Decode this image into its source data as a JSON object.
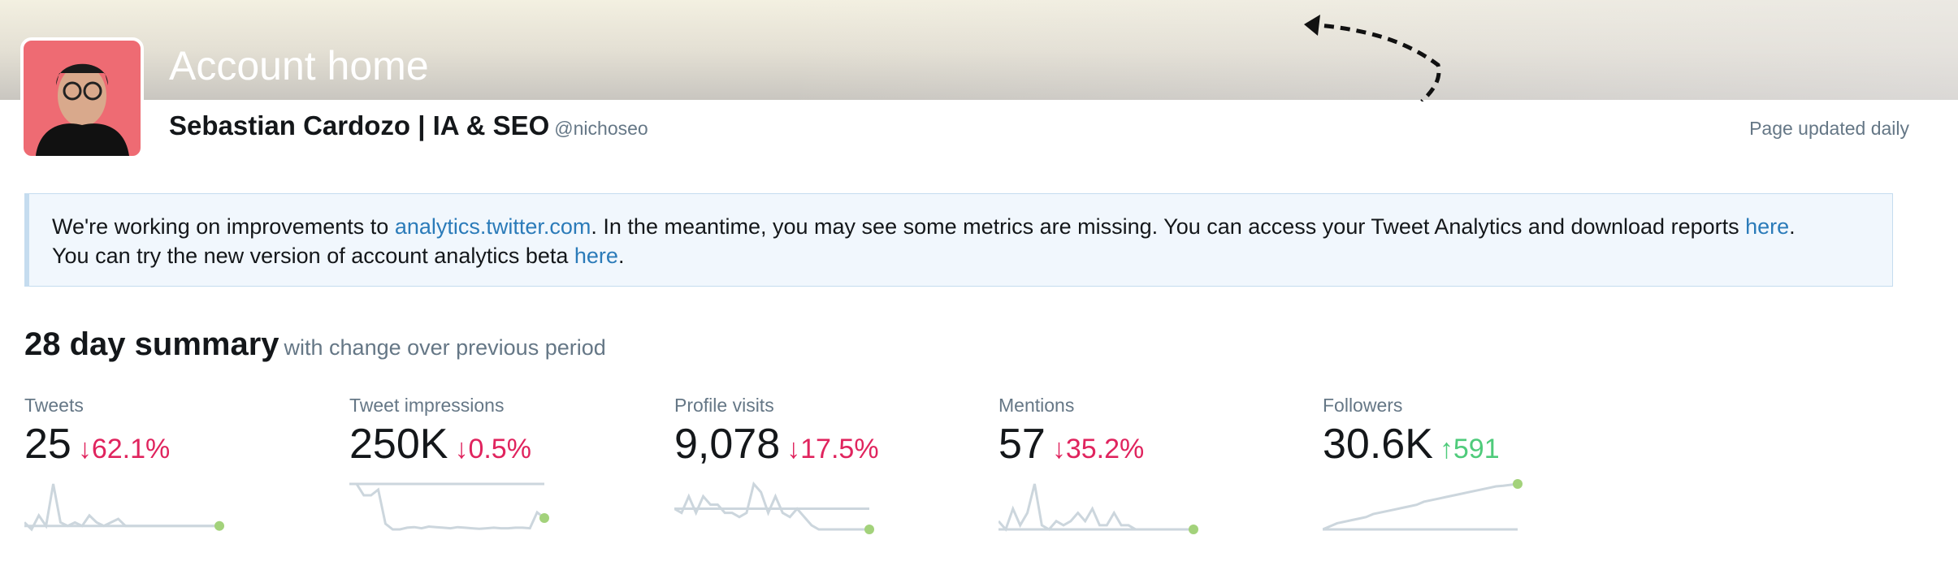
{
  "header": {
    "title": "Account home",
    "name": "Sebastian Cardozo | IA & SEO",
    "handle": "@nichoseo",
    "updated": "Page updated daily"
  },
  "notice": {
    "t1": "We're working on improvements to ",
    "link1": "analytics.twitter.com",
    "t2": ". In the meantime, you may see some metrics are missing. You can access your Tweet Analytics and download reports ",
    "link2": "here",
    "t3": ".",
    "t4": "You can try the new version of account analytics beta ",
    "link3": "here",
    "t5": "."
  },
  "summary": {
    "title": "28 day summary",
    "subtitle": "with change over previous period"
  },
  "colors": {
    "down": "#e0245e",
    "up": "#4fcb7b",
    "spark": "#ccd6dd",
    "dot": "#a3d27b"
  },
  "metrics": [
    {
      "label": "Tweets",
      "value": "25",
      "change": "62.1%",
      "direction": "down",
      "spark": [
        5,
        3,
        7,
        4,
        16,
        5,
        4,
        5,
        4,
        7,
        5,
        4,
        5,
        6,
        4,
        4,
        4,
        4,
        4,
        4,
        4,
        4,
        4,
        4,
        4,
        4,
        4,
        4
      ]
    },
    {
      "label": "Tweet impressions",
      "value": "250K",
      "change": "0.5%",
      "direction": "down",
      "spark": [
        10,
        10,
        8,
        8,
        9,
        3,
        2,
        2,
        2.3,
        2.4,
        2.2,
        2.5,
        2.4,
        2.3,
        2.2,
        2.4,
        2.3,
        2.2,
        2.1,
        2.2,
        2.3,
        2.2,
        2.2,
        2.3,
        2.3,
        2.2,
        5,
        4
      ]
    },
    {
      "label": "Profile visits",
      "value": "9,078",
      "change": "17.5%",
      "direction": "down",
      "spark": [
        9,
        8,
        12,
        8,
        12,
        10,
        10,
        8,
        8,
        7,
        8,
        15,
        13,
        8,
        12,
        8,
        7,
        9,
        7,
        5,
        4,
        4,
        4,
        4,
        4,
        4,
        4,
        4
      ]
    },
    {
      "label": "Mentions",
      "value": "57",
      "change": "35.2%",
      "direction": "down",
      "spark": [
        6,
        4,
        9,
        5,
        8,
        15,
        5,
        4,
        6,
        5,
        6,
        8,
        6,
        9,
        5,
        5,
        8,
        5,
        5,
        4,
        4,
        4,
        4,
        4,
        4,
        4,
        4,
        4
      ]
    },
    {
      "label": "Followers",
      "value": "30.6K",
      "change": "591",
      "direction": "up",
      "spark": [
        0,
        1,
        2,
        2.5,
        3,
        3.5,
        4,
        5,
        5.5,
        6,
        6.5,
        7,
        7.5,
        8,
        9,
        9.5,
        10,
        10.5,
        11,
        11.5,
        12,
        12.5,
        13,
        13.5,
        14,
        14.2,
        14.5,
        14.8
      ]
    }
  ]
}
